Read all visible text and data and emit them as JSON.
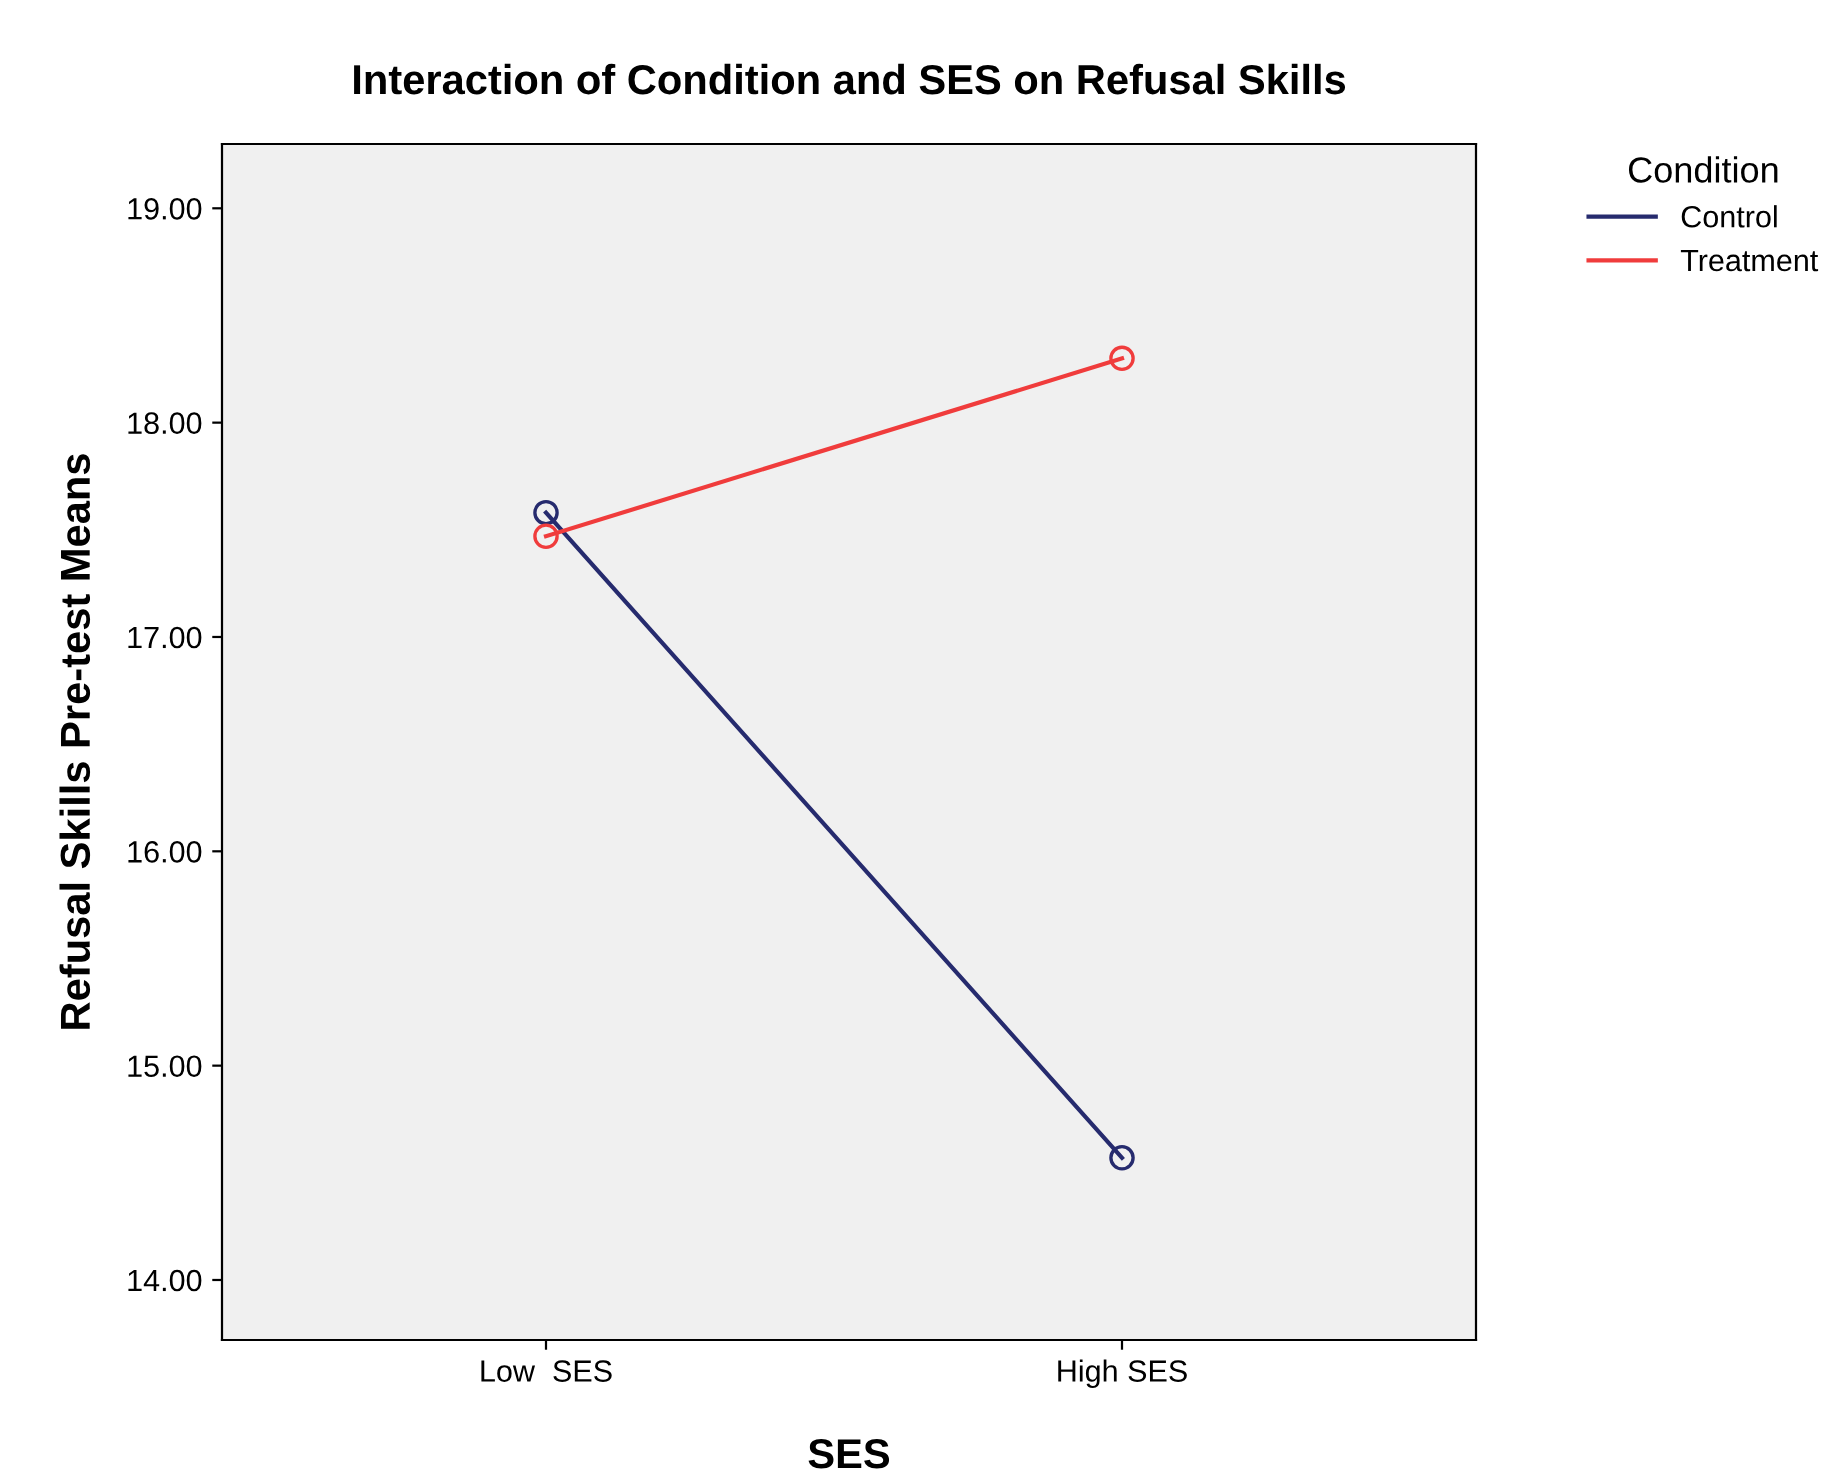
{
  "chart_data": {
    "type": "line",
    "title": "Interaction of Condition and SES on Refusal Skills",
    "xlabel": "SES",
    "ylabel": "Refusal Skills Pre-test Means",
    "legend_title": "Condition",
    "categories": [
      "Low  SES",
      "High SES"
    ],
    "series": [
      {
        "name": "Control",
        "color": "#262b6e",
        "values": [
          17.58,
          14.57
        ]
      },
      {
        "name": "Treatment",
        "color": "#f03c3c",
        "values": [
          17.47,
          18.3
        ]
      }
    ],
    "ylim": [
      13.72,
      19.3
    ],
    "yticks": [
      {
        "value": 14,
        "label": "14.00"
      },
      {
        "value": 15,
        "label": "15.00"
      },
      {
        "value": 16,
        "label": "16.00"
      },
      {
        "value": 17,
        "label": "17.00"
      },
      {
        "value": 18,
        "label": "18.00"
      },
      {
        "value": 19,
        "label": "19.00"
      }
    ],
    "grid": false,
    "legend": "top right",
    "marker": "circle"
  }
}
